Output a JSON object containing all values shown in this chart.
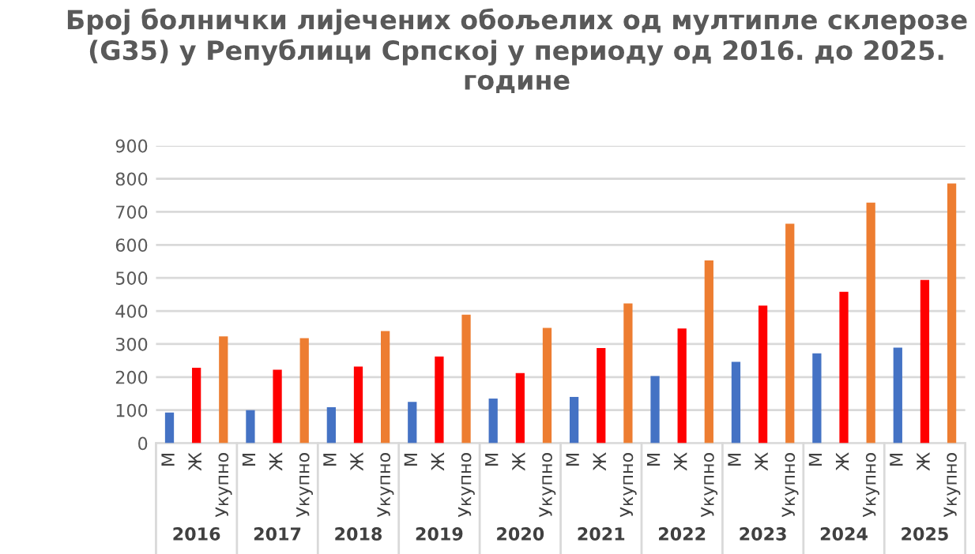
{
  "chart_data": {
    "type": "bar",
    "title": "Број болнички лијечених обољелих од мултипле склерозе (G35) у Републици Српској у периоду од 2016. до 2025. године",
    "categories": [
      "2016",
      "2017",
      "2018",
      "2019",
      "2020",
      "2021",
      "2022",
      "2023",
      "2024",
      "2025"
    ],
    "series": [
      {
        "name": "М",
        "color": "#4472c4",
        "values": [
          93,
          100,
          109,
          125,
          135,
          140,
          203,
          246,
          272,
          289
        ]
      },
      {
        "name": "Ж",
        "color": "#ff0000",
        "values": [
          228,
          222,
          232,
          262,
          212,
          288,
          347,
          416,
          458,
          494
        ]
      },
      {
        "name": "Укупно",
        "color": "#ed7d31",
        "values": [
          323,
          318,
          339,
          389,
          349,
          423,
          553,
          664,
          728,
          786
        ]
      }
    ],
    "ylim": [
      0,
      900
    ],
    "yticks": [
      0,
      100,
      200,
      300,
      400,
      500,
      600,
      700,
      800,
      900
    ],
    "grid": "y",
    "legend": false
  }
}
